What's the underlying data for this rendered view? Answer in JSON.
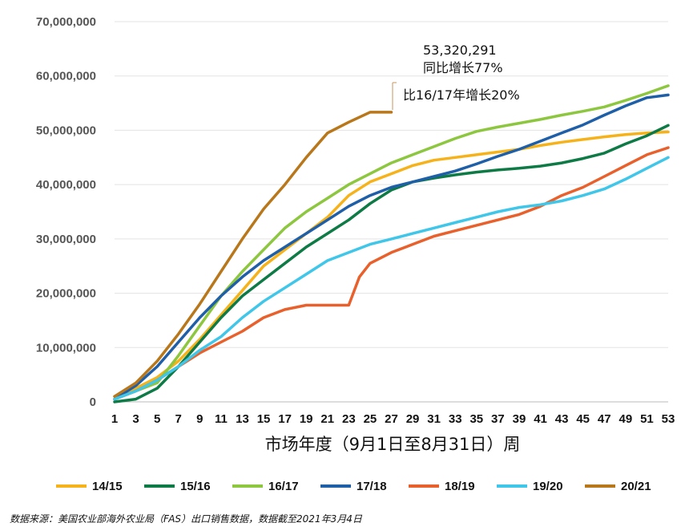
{
  "chart_data": {
    "type": "line",
    "title": "",
    "xlabel": "市场年度（9月1日至8月31日）周",
    "ylabel": "",
    "ylim": [
      0,
      70000000
    ],
    "xlim": [
      1,
      53
    ],
    "grid": true,
    "legend_position": "bottom",
    "y_ticks": [
      "0",
      "10,000,000",
      "20,000,000",
      "30,000,000",
      "40,000,000",
      "50,000,000",
      "60,000,000",
      "70,000,000"
    ],
    "x_ticks": [
      "1",
      "3",
      "5",
      "7",
      "9",
      "11",
      "13",
      "15",
      "17",
      "19",
      "21",
      "23",
      "25",
      "27",
      "29",
      "31",
      "33",
      "35",
      "37",
      "39",
      "41",
      "43",
      "45",
      "47",
      "49",
      "51",
      "53"
    ],
    "series": [
      {
        "name": "14/15",
        "color": "#f5b21a",
        "x": [
          1,
          3,
          5,
          7,
          9,
          11,
          13,
          15,
          17,
          19,
          21,
          23,
          25,
          27,
          29,
          31,
          33,
          35,
          37,
          39,
          41,
          43,
          45,
          47,
          49,
          51,
          53
        ],
        "values": [
          1000000,
          2500000,
          4500000,
          7500000,
          11500000,
          16000000,
          20500000,
          25000000,
          28000000,
          31000000,
          34000000,
          38000000,
          40500000,
          42000000,
          43500000,
          44500000,
          45000000,
          45500000,
          46000000,
          46500000,
          47200000,
          47800000,
          48300000,
          48800000,
          49200000,
          49500000,
          49700000
        ]
      },
      {
        "name": "15/16",
        "color": "#0e7a45",
        "x": [
          1,
          3,
          5,
          7,
          9,
          11,
          13,
          15,
          17,
          19,
          21,
          23,
          25,
          27,
          29,
          31,
          33,
          35,
          37,
          39,
          41,
          43,
          45,
          47,
          49,
          51,
          53
        ],
        "values": [
          0,
          500000,
          2500000,
          6500000,
          11000000,
          15500000,
          19500000,
          22500000,
          25500000,
          28500000,
          31000000,
          33500000,
          36500000,
          39000000,
          40500000,
          41200000,
          41800000,
          42300000,
          42700000,
          43000000,
          43400000,
          44000000,
          44800000,
          45800000,
          47500000,
          49000000,
          50900000
        ]
      },
      {
        "name": "16/17",
        "color": "#8dc63f",
        "x": [
          1,
          3,
          5,
          7,
          9,
          11,
          13,
          15,
          17,
          19,
          21,
          23,
          25,
          27,
          29,
          31,
          33,
          35,
          37,
          39,
          41,
          43,
          45,
          47,
          49,
          51,
          53
        ],
        "values": [
          500000,
          2000000,
          3500000,
          8500000,
          14000000,
          19500000,
          24000000,
          28000000,
          32000000,
          35000000,
          37500000,
          40000000,
          42000000,
          44000000,
          45500000,
          47000000,
          48500000,
          49800000,
          50600000,
          51300000,
          52000000,
          52800000,
          53500000,
          54300000,
          55500000,
          56800000,
          58200000
        ]
      },
      {
        "name": "17/18",
        "color": "#1f5fa8",
        "x": [
          1,
          3,
          5,
          7,
          9,
          11,
          13,
          15,
          17,
          19,
          21,
          23,
          25,
          27,
          29,
          31,
          33,
          35,
          37,
          39,
          41,
          43,
          45,
          47,
          49,
          51,
          53
        ],
        "values": [
          500000,
          3000000,
          6500000,
          11000000,
          15500000,
          19500000,
          23000000,
          26000000,
          28500000,
          31000000,
          33500000,
          36000000,
          38000000,
          39500000,
          40500000,
          41500000,
          42500000,
          43800000,
          45200000,
          46500000,
          48000000,
          49500000,
          51000000,
          52800000,
          54500000,
          56000000,
          56500000
        ]
      },
      {
        "name": "18/19",
        "color": "#e8612c",
        "x": [
          1,
          3,
          5,
          7,
          9,
          11,
          13,
          15,
          17,
          19,
          21,
          22,
          23,
          24,
          25,
          27,
          29,
          31,
          33,
          35,
          37,
          39,
          41,
          43,
          45,
          47,
          49,
          51,
          53
        ],
        "values": [
          500000,
          2000000,
          4000000,
          6500000,
          9000000,
          11000000,
          13000000,
          15500000,
          17000000,
          17800000,
          17800000,
          17800000,
          17800000,
          23000000,
          25500000,
          27500000,
          29000000,
          30500000,
          31500000,
          32500000,
          33500000,
          34500000,
          36000000,
          38000000,
          39500000,
          41500000,
          43500000,
          45500000,
          46800000
        ]
      },
      {
        "name": "19/20",
        "color": "#3fc6e8",
        "x": [
          1,
          3,
          5,
          7,
          9,
          11,
          13,
          15,
          17,
          19,
          21,
          23,
          25,
          27,
          29,
          31,
          33,
          35,
          37,
          39,
          41,
          43,
          45,
          47,
          49,
          51,
          53
        ],
        "values": [
          500000,
          2000000,
          4000000,
          6500000,
          9500000,
          12000000,
          15500000,
          18500000,
          21000000,
          23500000,
          26000000,
          27500000,
          29000000,
          30000000,
          31000000,
          32000000,
          33000000,
          34000000,
          35000000,
          35800000,
          36300000,
          37000000,
          38000000,
          39200000,
          41000000,
          43000000,
          45000000
        ]
      },
      {
        "name": "20/21",
        "color": "#b9771b",
        "x": [
          1,
          3,
          5,
          7,
          9,
          11,
          13,
          15,
          17,
          19,
          21,
          23,
          25,
          27
        ],
        "values": [
          1000000,
          3500000,
          7500000,
          12500000,
          18000000,
          24000000,
          30000000,
          35500000,
          40000000,
          45000000,
          49500000,
          51500000,
          53320291,
          53320291
        ]
      }
    ],
    "annotations": [
      {
        "value": "53,320,291",
        "text": "同比增长77%"
      },
      {
        "text": "比16/17年增长20%"
      }
    ]
  },
  "source_note": "数据来源：美国农业部海外农业局（FAS）出口销售数据，数据截至2021年3月4日"
}
